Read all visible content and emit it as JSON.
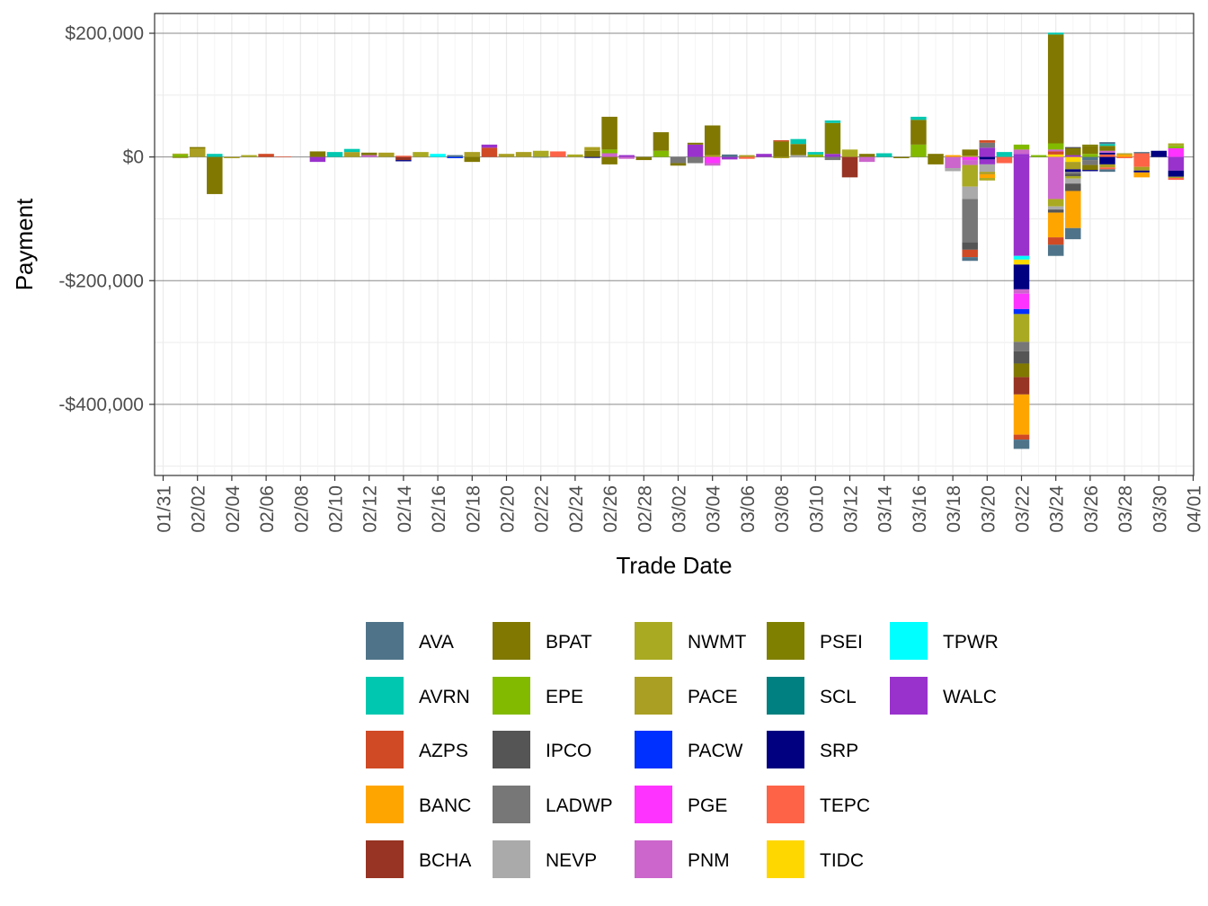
{
  "chart_data": {
    "type": "bar",
    "stacked": true,
    "xlabel": "Trade Date",
    "ylabel": "Payment",
    "ylim": [
      -515000,
      232000
    ],
    "y_ticks": [
      200000,
      0,
      -200000,
      -400000
    ],
    "y_tick_labels": [
      "$200,000",
      "$0",
      "-$200,000",
      "-$400,000"
    ],
    "x_tick_labels": [
      "01/31",
      "02/02",
      "02/04",
      "02/06",
      "02/08",
      "02/10",
      "02/12",
      "02/14",
      "02/16",
      "02/18",
      "02/20",
      "02/22",
      "02/24",
      "02/26",
      "02/28",
      "03/02",
      "03/04",
      "03/06",
      "03/08",
      "03/10",
      "03/12",
      "03/14",
      "03/16",
      "03/18",
      "03/20",
      "03/22",
      "03/24",
      "03/26",
      "03/28",
      "03/30",
      "04/01"
    ],
    "grid": true,
    "legend_position": "bottom",
    "legend_columns": 5,
    "series": [
      {
        "name": "AVA",
        "color": "#4F7489"
      },
      {
        "name": "AVRN",
        "color": "#00C8B0"
      },
      {
        "name": "AZPS",
        "color": "#D04A25"
      },
      {
        "name": "BANC",
        "color": "#FFA500"
      },
      {
        "name": "BCHA",
        "color": "#973423"
      },
      {
        "name": "BPAT",
        "color": "#807800"
      },
      {
        "name": "EPE",
        "color": "#82BA00"
      },
      {
        "name": "IPCO",
        "color": "#555555"
      },
      {
        "name": "LADWP",
        "color": "#777777"
      },
      {
        "name": "NEVP",
        "color": "#AAAAAA"
      },
      {
        "name": "NWMT",
        "color": "#AAAA22"
      },
      {
        "name": "PACE",
        "color": "#AA9F22"
      },
      {
        "name": "PACW",
        "color": "#0030FF"
      },
      {
        "name": "PGE",
        "color": "#FF33FF"
      },
      {
        "name": "PNM",
        "color": "#CC66CC"
      },
      {
        "name": "PSEI",
        "color": "#808000"
      },
      {
        "name": "SCL",
        "color": "#008080"
      },
      {
        "name": "SRP",
        "color": "#000080"
      },
      {
        "name": "TEPC",
        "color": "#FF6347"
      },
      {
        "name": "TIDC",
        "color": "#FFD700"
      },
      {
        "name": "TPWR",
        "color": "#00FFFF"
      },
      {
        "name": "WALC",
        "color": "#9932CC"
      }
    ],
    "days": [
      {
        "date": "02/01",
        "pos": [
          [
            "EPE",
            4000
          ],
          [
            "NWMT",
            1500
          ]
        ],
        "neg": [
          [
            "BPAT",
            -1500
          ]
        ]
      },
      {
        "date": "02/02",
        "pos": [
          [
            "PACE",
            14000
          ],
          [
            "BPAT",
            2000
          ]
        ],
        "neg": []
      },
      {
        "date": "02/03",
        "pos": [
          [
            "AVRN",
            5000
          ]
        ],
        "neg": [
          [
            "BPAT",
            -60000
          ]
        ]
      },
      {
        "date": "02/04",
        "pos": [],
        "neg": [
          [
            "PACE",
            -2000
          ]
        ]
      },
      {
        "date": "02/05",
        "pos": [
          [
            "NWMT",
            3000
          ]
        ],
        "neg": []
      },
      {
        "date": "02/06",
        "pos": [
          [
            "AZPS",
            5000
          ]
        ],
        "neg": []
      },
      {
        "date": "02/07",
        "pos": [
          [
            "TEPC",
            1000
          ]
        ],
        "neg": []
      },
      {
        "date": "02/09",
        "pos": [
          [
            "BPAT",
            9000
          ]
        ],
        "neg": [
          [
            "WALC",
            -8000
          ]
        ]
      },
      {
        "date": "02/10",
        "pos": [
          [
            "AVRN",
            8000
          ]
        ],
        "neg": []
      },
      {
        "date": "02/11",
        "pos": [
          [
            "PACE",
            8000
          ],
          [
            "AVRN",
            5000
          ]
        ],
        "neg": []
      },
      {
        "date": "02/12",
        "pos": [
          [
            "PNM",
            3000
          ],
          [
            "BPAT",
            4000
          ]
        ],
        "neg": []
      },
      {
        "date": "02/13",
        "pos": [
          [
            "PACE",
            7000
          ]
        ],
        "neg": []
      },
      {
        "date": "02/14",
        "pos": [
          [
            "TEPC",
            2000
          ]
        ],
        "neg": [
          [
            "BCHA",
            -5000
          ],
          [
            "SRP",
            -2000
          ]
        ]
      },
      {
        "date": "02/15",
        "pos": [
          [
            "NWMT",
            8000
          ]
        ],
        "neg": []
      },
      {
        "date": "02/16",
        "pos": [
          [
            "TPWR",
            5000
          ]
        ],
        "neg": []
      },
      {
        "date": "02/17",
        "pos": [
          [
            "AVA",
            3000
          ]
        ],
        "neg": [
          [
            "PACW",
            -2000
          ]
        ]
      },
      {
        "date": "02/18",
        "pos": [
          [
            "PACE",
            8000
          ]
        ],
        "neg": [
          [
            "BPAT",
            -8000
          ]
        ]
      },
      {
        "date": "02/19",
        "pos": [
          [
            "AZPS",
            15000
          ],
          [
            "WALC",
            5000
          ]
        ],
        "neg": []
      },
      {
        "date": "02/20",
        "pos": [
          [
            "PACE",
            5000
          ]
        ],
        "neg": []
      },
      {
        "date": "02/21",
        "pos": [
          [
            "PACE",
            8000
          ]
        ],
        "neg": []
      },
      {
        "date": "02/22",
        "pos": [
          [
            "NWMT",
            10000
          ]
        ],
        "neg": [
          [
            "AVA",
            -1000
          ]
        ]
      },
      {
        "date": "02/23",
        "pos": [
          [
            "TEPC",
            9000
          ]
        ],
        "neg": []
      },
      {
        "date": "02/24",
        "pos": [
          [
            "NWMT",
            4000
          ]
        ],
        "neg": []
      },
      {
        "date": "02/25",
        "pos": [
          [
            "BPAT",
            10000
          ],
          [
            "PACE",
            6000
          ]
        ],
        "neg": [
          [
            "SRP",
            -1500
          ]
        ]
      },
      {
        "date": "02/26",
        "pos": [
          [
            "PNM",
            6000
          ],
          [
            "EPE",
            6000
          ],
          [
            "BPAT",
            53000
          ]
        ],
        "neg": [
          [
            "BPAT",
            -12000
          ]
        ]
      },
      {
        "date": "02/27",
        "pos": [
          [
            "WALC",
            3000
          ]
        ],
        "neg": [
          [
            "PNM",
            -3000
          ]
        ]
      },
      {
        "date": "02/28",
        "pos": [],
        "neg": [
          [
            "BPAT",
            -5000
          ]
        ]
      },
      {
        "date": "03/01",
        "pos": [
          [
            "EPE",
            10000
          ],
          [
            "BPAT",
            30000
          ]
        ],
        "neg": []
      },
      {
        "date": "03/02",
        "pos": [],
        "neg": [
          [
            "LADWP",
            -10000
          ],
          [
            "BPAT",
            -4000
          ]
        ]
      },
      {
        "date": "03/03",
        "pos": [
          [
            "WALC",
            20000
          ],
          [
            "BPAT",
            3000
          ]
        ],
        "neg": [
          [
            "LADWP",
            -10000
          ]
        ]
      },
      {
        "date": "03/04",
        "pos": [
          [
            "PACE",
            3000
          ],
          [
            "BPAT",
            48000
          ]
        ],
        "neg": [
          [
            "PGE",
            -10000
          ],
          [
            "PNM",
            -4000
          ]
        ]
      },
      {
        "date": "03/05",
        "pos": [
          [
            "AVA",
            4000
          ]
        ],
        "neg": [
          [
            "WALC",
            -4000
          ]
        ]
      },
      {
        "date": "03/06",
        "pos": [
          [
            "PACE",
            3000
          ]
        ],
        "neg": [
          [
            "TEPC",
            -3000
          ]
        ]
      },
      {
        "date": "03/07",
        "pos": [
          [
            "WALC",
            5000
          ]
        ],
        "neg": []
      },
      {
        "date": "03/08",
        "pos": [
          [
            "BPAT",
            25000
          ],
          [
            "AZPS",
            2000
          ]
        ],
        "neg": [
          [
            "PACE",
            -2000
          ]
        ]
      },
      {
        "date": "03/09",
        "pos": [
          [
            "NEVP",
            3000
          ],
          [
            "BPAT",
            18000
          ],
          [
            "AVRN",
            8000
          ]
        ],
        "neg": []
      },
      {
        "date": "03/10",
        "pos": [
          [
            "EPE",
            4000
          ],
          [
            "AVRN",
            4000
          ]
        ],
        "neg": []
      },
      {
        "date": "03/11",
        "pos": [
          [
            "WALC",
            5000
          ],
          [
            "PSEI",
            50000
          ],
          [
            "AVRN",
            4000
          ]
        ],
        "neg": [
          [
            "LADWP",
            -5000
          ]
        ]
      },
      {
        "date": "03/12",
        "pos": [
          [
            "NWMT",
            12000
          ]
        ],
        "neg": [
          [
            "BCHA",
            -33000
          ]
        ]
      },
      {
        "date": "03/13",
        "pos": [
          [
            "BPAT",
            5000
          ]
        ],
        "neg": [
          [
            "PNM",
            -8000
          ]
        ]
      },
      {
        "date": "03/14",
        "pos": [
          [
            "AVRN",
            6000
          ]
        ],
        "neg": []
      },
      {
        "date": "03/15",
        "pos": [],
        "neg": [
          [
            "BPAT",
            -2000
          ]
        ]
      },
      {
        "date": "03/16",
        "pos": [
          [
            "EPE",
            20000
          ],
          [
            "BPAT",
            40000
          ],
          [
            "AVRN",
            5000
          ]
        ],
        "neg": []
      },
      {
        "date": "03/17",
        "pos": [
          [
            "BPAT",
            5000
          ]
        ],
        "neg": [
          [
            "BPAT",
            -12000
          ]
        ]
      },
      {
        "date": "03/18",
        "pos": [
          [
            "BANC",
            3000
          ]
        ],
        "neg": [
          [
            "PNM",
            -18000
          ],
          [
            "NEVP",
            -5000
          ]
        ]
      },
      {
        "date": "03/19",
        "pos": [
          [
            "NWMT",
            2000
          ],
          [
            "BPAT",
            10000
          ]
        ],
        "neg": [
          [
            "PGE",
            -5000
          ],
          [
            "PNM",
            -8000
          ],
          [
            "NWMT",
            -35000
          ],
          [
            "NEVP",
            -20000
          ],
          [
            "LADWP",
            -70000
          ],
          [
            "IPCO",
            -12000
          ],
          [
            "AZPS",
            -12000
          ],
          [
            "AVA",
            -6000
          ]
        ]
      },
      {
        "date": "03/20",
        "pos": [
          [
            "WALC",
            15000
          ],
          [
            "LADWP",
            8000
          ],
          [
            "AZPS",
            4000
          ]
        ],
        "neg": [
          [
            "SRP",
            -4000
          ],
          [
            "WALC",
            -8000
          ],
          [
            "NEVP",
            -12000
          ],
          [
            "PACE",
            -4000
          ],
          [
            "BANC",
            -6000
          ],
          [
            "NWMT",
            -4000
          ]
        ]
      },
      {
        "date": "03/21",
        "pos": [
          [
            "AVRN",
            8000
          ]
        ],
        "neg": [
          [
            "TEPC",
            -10000
          ]
        ]
      },
      {
        "date": "03/22",
        "pos": [
          [
            "WALC",
            5000
          ],
          [
            "PNM",
            7000
          ],
          [
            "EPE",
            8000
          ]
        ],
        "neg": [
          [
            "WALC",
            -160000
          ],
          [
            "TPWR",
            -6000
          ],
          [
            "TIDC",
            -8000
          ],
          [
            "SRP",
            -40000
          ],
          [
            "PNM",
            -7000
          ],
          [
            "PGE",
            -25000
          ],
          [
            "PACW",
            -8000
          ],
          [
            "NWMT",
            -45000
          ],
          [
            "LADWP",
            -15000
          ],
          [
            "IPCO",
            -20000
          ],
          [
            "BPAT",
            -22000
          ],
          [
            "BCHA",
            -28000
          ],
          [
            "BANC",
            -65000
          ],
          [
            "AZPS",
            -8000
          ],
          [
            "AVA",
            -15000
          ]
        ]
      },
      {
        "date": "03/23",
        "pos": [
          [
            "EPE",
            3000
          ]
        ],
        "neg": []
      },
      {
        "date": "03/24",
        "pos": [
          [
            "TIDC",
            4000
          ],
          [
            "AZPS",
            5000
          ],
          [
            "PNM",
            3000
          ],
          [
            "EPE",
            10000
          ],
          [
            "BPAT",
            176000
          ],
          [
            "AVRN",
            3000
          ]
        ],
        "neg": [
          [
            "PNM",
            -68000
          ],
          [
            "NWMT",
            -12000
          ],
          [
            "NEVP",
            -5000
          ],
          [
            "IPCO",
            -5000
          ],
          [
            "BANC",
            -40000
          ],
          [
            "AZPS",
            -12000
          ],
          [
            "AVA",
            -18000
          ]
        ]
      },
      {
        "date": "03/25",
        "pos": [
          [
            "WALC",
            3000
          ],
          [
            "BPAT",
            11000
          ],
          [
            "IPCO",
            2000
          ]
        ],
        "neg": [
          [
            "TIDC",
            -8000
          ],
          [
            "PACE",
            -12000
          ],
          [
            "SRP",
            -4000
          ],
          [
            "LADWP",
            -3000
          ],
          [
            "IPCO",
            -4000
          ],
          [
            "NWMT",
            -4000
          ],
          [
            "NEVP",
            -8000
          ],
          [
            "IPCO",
            -12000
          ],
          [
            "BANC",
            -60000
          ],
          [
            "AVA",
            -18000
          ]
        ]
      },
      {
        "date": "03/26",
        "pos": [
          [
            "EPE",
            5000
          ],
          [
            "BPAT",
            12000
          ],
          [
            "PSEI",
            3000
          ]
        ],
        "neg": [
          [
            "AVA",
            -5000
          ],
          [
            "LADWP",
            -8000
          ],
          [
            "BPAT",
            -8000
          ],
          [
            "SRP",
            -2000
          ]
        ]
      },
      {
        "date": "03/27",
        "pos": [
          [
            "TEPC",
            4000
          ],
          [
            "SRP",
            3000
          ],
          [
            "PNM",
            3000
          ],
          [
            "BPAT",
            8000
          ],
          [
            "AVRN",
            3000
          ],
          [
            "AVA",
            3000
          ]
        ],
        "neg": [
          [
            "SRP",
            -12000
          ],
          [
            "PACE",
            -5000
          ],
          [
            "TEPC",
            -3000
          ],
          [
            "AVA",
            -4000
          ]
        ]
      },
      {
        "date": "03/28",
        "pos": [
          [
            "BANC",
            4000
          ],
          [
            "PACE",
            2000
          ]
        ],
        "neg": [
          [
            "TEPC",
            -2000
          ]
        ]
      },
      {
        "date": "03/29",
        "pos": [
          [
            "TEPC",
            6000
          ],
          [
            "AVA",
            2000
          ]
        ],
        "neg": [
          [
            "TEPC",
            -16000
          ],
          [
            "PACE",
            -6000
          ],
          [
            "SRP",
            -3000
          ],
          [
            "BANC",
            -8000
          ]
        ]
      },
      {
        "date": "03/30",
        "pos": [
          [
            "SRP",
            10000
          ]
        ],
        "neg": []
      },
      {
        "date": "03/31",
        "pos": [
          [
            "PGE",
            14000
          ],
          [
            "EPE",
            4000
          ],
          [
            "NWMT",
            4000
          ]
        ],
        "neg": [
          [
            "WALC",
            -22000
          ],
          [
            "SRP",
            -10000
          ],
          [
            "PACE",
            -2000
          ],
          [
            "TEPC",
            -3000
          ]
        ]
      }
    ]
  }
}
